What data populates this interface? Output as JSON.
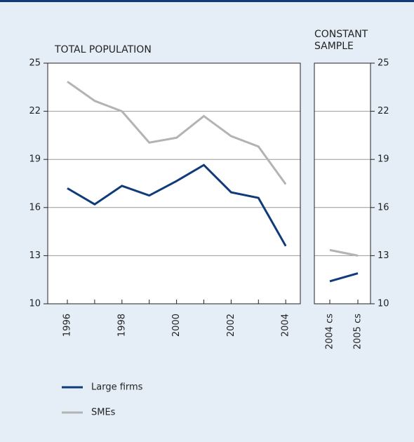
{
  "chart_data": [
    {
      "type": "line",
      "title": "TOTAL POPULATION",
      "categories": [
        "1996",
        null,
        "1998",
        null,
        "2000",
        null,
        "2002",
        null,
        "2004"
      ],
      "series": [
        {
          "name": "Large firms",
          "color": "#0f3b7a",
          "values": [
            17.2,
            16.2,
            17.35,
            16.75,
            17.65,
            18.65,
            16.95,
            16.6,
            13.6
          ]
        },
        {
          "name": "SMEs",
          "color": "#b3b3b3",
          "values": [
            23.85,
            22.65,
            22.0,
            20.05,
            20.35,
            21.7,
            20.45,
            19.8,
            17.45
          ]
        }
      ],
      "ylim": [
        10,
        25
      ],
      "yticks": [
        10,
        13,
        16,
        19,
        22,
        25
      ],
      "grid": true
    },
    {
      "type": "line",
      "title": "CONSTANT SAMPLE",
      "categories": [
        "2004 cs",
        "2005 cs"
      ],
      "series": [
        {
          "color": "#0f3b7a",
          "values": [
            11.4,
            11.9
          ]
        },
        {
          "color": "#b3b3b3",
          "values": [
            13.35,
            13.0
          ]
        }
      ],
      "ylim": [
        10,
        25
      ],
      "yticks": [
        10,
        13,
        16,
        19,
        22,
        25
      ],
      "grid": true
    }
  ]
}
